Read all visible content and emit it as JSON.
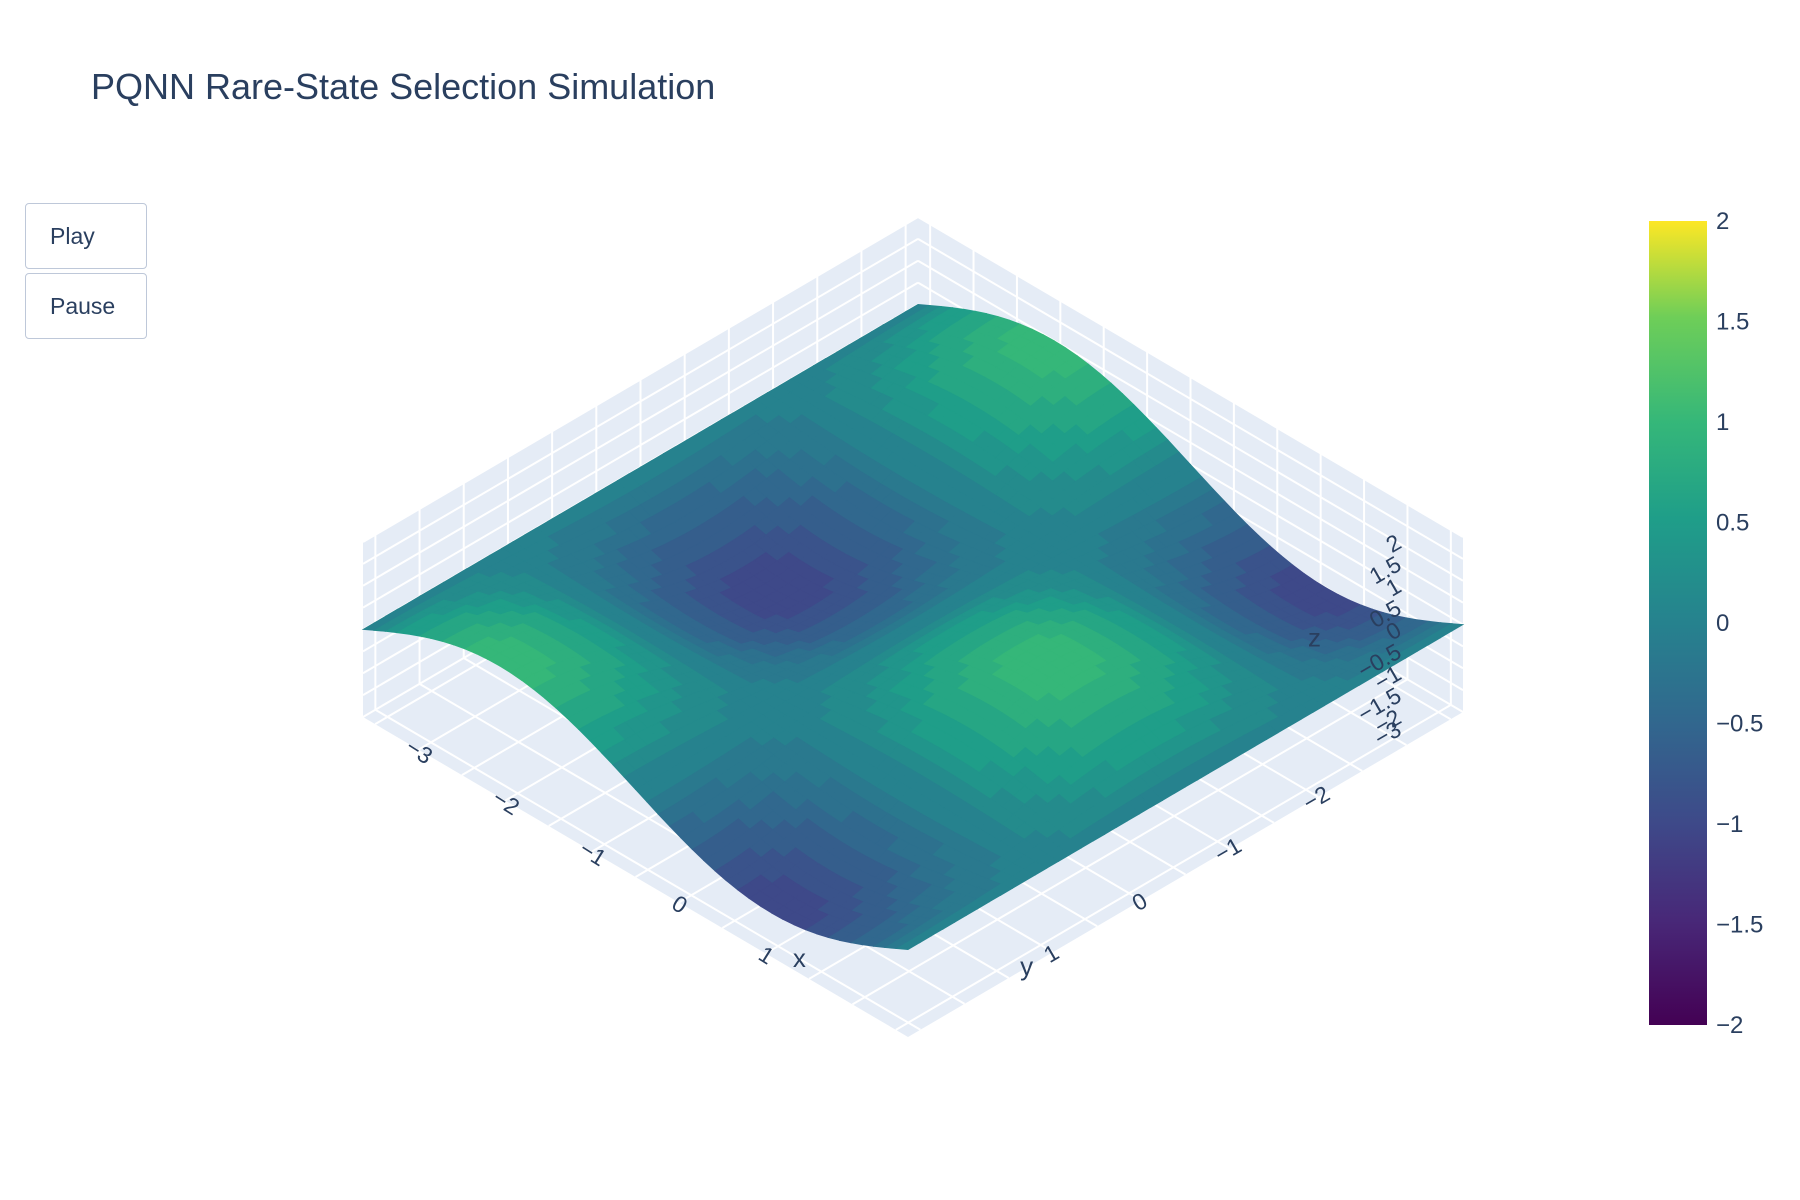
{
  "title": "PQNN Rare-State Selection Simulation",
  "controls": {
    "play_label": "Play",
    "pause_label": "Pause"
  },
  "chart_data": {
    "type": "surface",
    "title": "PQNN Rare-State Selection Simulation",
    "xlabel": "x",
    "ylabel": "y",
    "zlabel": "z",
    "x_range": [
      -3.14,
      3.14
    ],
    "y_range": [
      -3.14,
      3.14
    ],
    "z_range": [
      -2,
      2
    ],
    "x_ticks": [
      "−3",
      "−2",
      "−1",
      "0",
      "1"
    ],
    "y_ticks": [
      "−2",
      "−1",
      "0",
      "1"
    ],
    "z_ticks": [
      "2",
      "1.5",
      "1",
      "0.5",
      "0",
      "−0.5",
      "−1",
      "−1.5",
      "−2",
      "−3"
    ],
    "surface_formula": "z = sin(x) * cos(y)",
    "colorscale": "Viridis",
    "colorbar": {
      "range": [
        -2,
        2
      ],
      "ticks": [
        "2",
        "1.5",
        "1",
        "0.5",
        "0",
        "−0.5",
        "−1",
        "−1.5",
        "−2"
      ]
    },
    "grid": true,
    "colors": {
      "scene_background": "#e5ecf6",
      "grid": "#ffffff",
      "text": "#2a3f5f"
    }
  }
}
